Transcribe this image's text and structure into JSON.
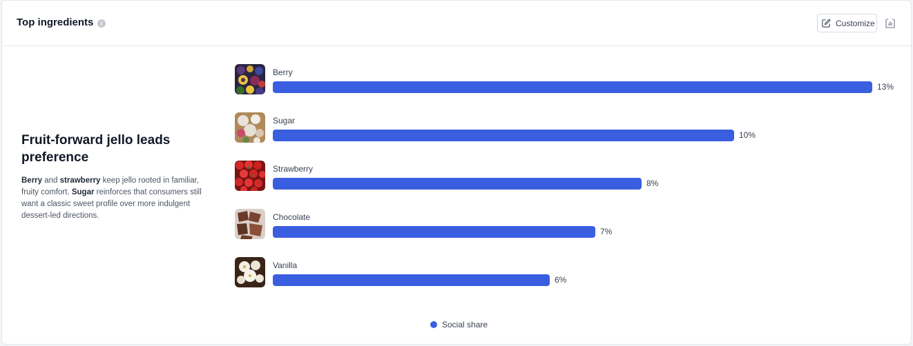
{
  "header": {
    "title": "Top ingredients",
    "info_icon": "info-icon",
    "customize_label": "Customize",
    "customize_icon": "edit-icon",
    "export_icon": "chart-export-icon"
  },
  "insight": {
    "heading": "Fruit-forward jello leads preference",
    "body_parts": [
      {
        "text": "Berry",
        "bold": true
      },
      {
        "text": " and ",
        "bold": false
      },
      {
        "text": "strawberry",
        "bold": true
      },
      {
        "text": " keep jello rooted in familiar, fruity comfort. ",
        "bold": false
      },
      {
        "text": "Sugar",
        "bold": true
      },
      {
        "text": " reinforces that consumers still want a classic sweet profile over more indulgent dessert-led directions.",
        "bold": false
      }
    ]
  },
  "colors": {
    "bar": "#3a5ee0",
    "text": "#374151"
  },
  "chart_data": {
    "type": "bar",
    "orientation": "horizontal",
    "categories": [
      "Berry",
      "Sugar",
      "Strawberry",
      "Chocolate",
      "Vanilla"
    ],
    "series": [
      {
        "name": "Social share",
        "values": [
          13,
          10,
          8,
          7,
          6
        ]
      }
    ],
    "value_labels": [
      "13%",
      "10%",
      "8%",
      "7%",
      "6%"
    ],
    "unit": "%",
    "legend": {
      "placement": "bottom-center",
      "entries": [
        "Social share"
      ]
    },
    "grid": false,
    "thumbnails": [
      "berry-photo",
      "sugar-photo",
      "strawberry-photo",
      "chocolate-photo",
      "vanilla-photo"
    ]
  }
}
